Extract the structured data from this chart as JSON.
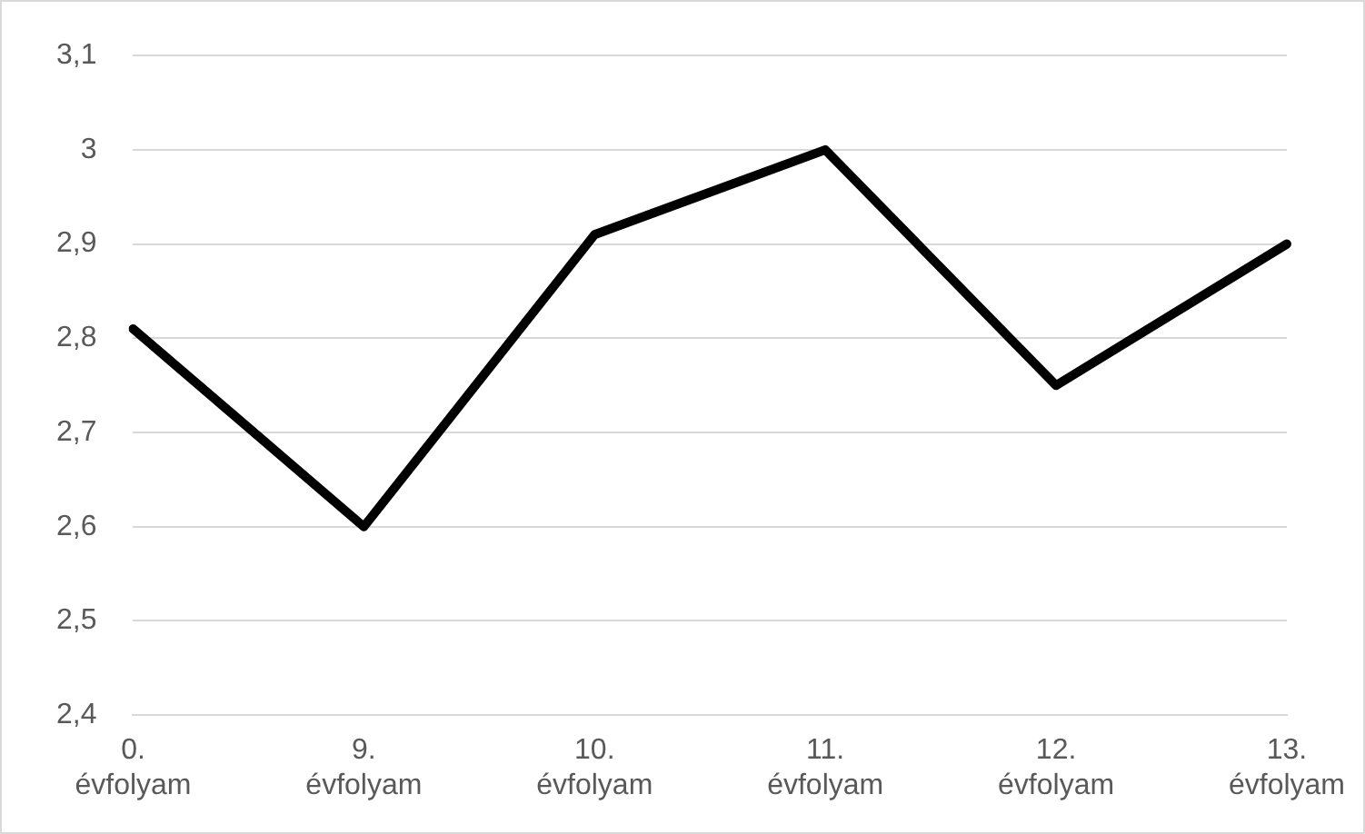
{
  "chart_data": {
    "type": "line",
    "categories": [
      "0. évfolyam",
      "9. évfolyam",
      "10. évfolyam",
      "11. évfolyam",
      "12. évfolyam",
      "13. évfolyam"
    ],
    "series": [
      {
        "color": "#000000",
        "values": [
          2.81,
          2.6,
          2.91,
          3.0,
          2.75,
          2.9
        ]
      }
    ],
    "ylim": [
      2.4,
      3.1
    ],
    "yticks": [
      {
        "value": 2.4,
        "label": "2,4"
      },
      {
        "value": 2.5,
        "label": "2,5"
      },
      {
        "value": 2.6,
        "label": "2,6"
      },
      {
        "value": 2.7,
        "label": "2,7"
      },
      {
        "value": 2.8,
        "label": "2,8"
      },
      {
        "value": 2.9,
        "label": "2,9"
      },
      {
        "value": 3,
        "label": "3"
      },
      {
        "value": 3.1,
        "label": "3,1"
      }
    ],
    "grid": "y",
    "legend": false,
    "marker": "none",
    "line_style": "solid"
  }
}
